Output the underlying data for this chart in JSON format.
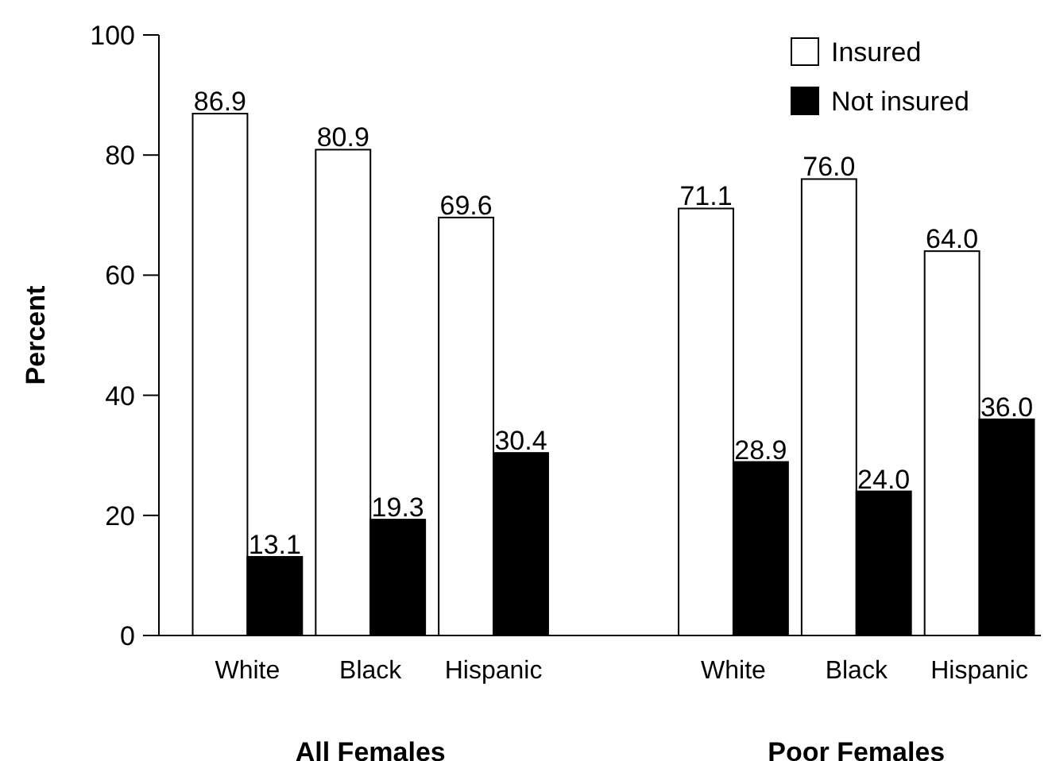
{
  "chart_data": {
    "type": "bar",
    "ylabel": "Percent",
    "categories": [
      "White",
      "Black",
      "Hispanic",
      "White",
      "Black",
      "Hispanic"
    ],
    "series": [
      {
        "name": "Insured",
        "color": "#ffffff",
        "values": [
          86.9,
          80.9,
          69.6,
          71.1,
          76.0,
          64.0
        ],
        "value_labels": [
          "86.9",
          "80.9",
          "69.6",
          "71.1",
          "76.0",
          "64.0"
        ]
      },
      {
        "name": "Not insured",
        "color": "#000000",
        "values": [
          13.1,
          19.3,
          30.4,
          28.9,
          24.0,
          36.0
        ],
        "value_labels": [
          "13.1",
          "19.3",
          "30.4",
          "28.9",
          "24.0",
          "36.0"
        ]
      }
    ],
    "ylim": [
      0,
      100
    ],
    "yticks": [
      0,
      20,
      40,
      60,
      80,
      100
    ],
    "grid": false,
    "legend": "top right",
    "annotations": [
      "All Females",
      "Poor Females"
    ]
  }
}
